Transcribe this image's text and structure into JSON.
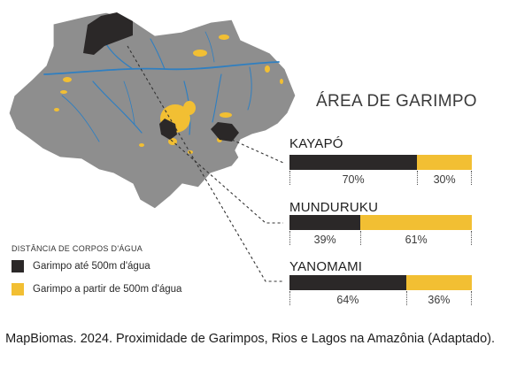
{
  "title": "ÁREA DE GARIMPO",
  "legend": {
    "title": "DISTÂNCIA DE CORPOS D'ÁGUA",
    "items": [
      {
        "label": "Garimpo até 500m d'água",
        "color": "#2b2828"
      },
      {
        "label": "Garimpo a partir de 500m d'água",
        "color": "#f2bf33"
      }
    ]
  },
  "chart_data": {
    "type": "bar",
    "stacked": true,
    "orientation": "horizontal",
    "categories": [
      "KAYAPÓ",
      "MUNDURUKU",
      "YANOMAMI"
    ],
    "series": [
      {
        "name": "Garimpo até 500m d'água",
        "values": [
          70,
          39,
          64
        ],
        "labels": [
          "70%",
          "39%",
          "64%"
        ],
        "color": "#2b2828"
      },
      {
        "name": "Garimpo a partir de 500m d'água",
        "values": [
          30,
          61,
          36
        ],
        "labels": [
          "30%",
          "61%",
          "36%"
        ],
        "color": "#f2bf33"
      }
    ]
  },
  "map": {
    "land_color": "#8e8e8e",
    "river_color": "#2f7fc1",
    "territory_color": "#2b2828",
    "mining_color": "#f2bf33"
  },
  "caption": "MapBiomas. 2024. Proximidade de Garimpos, Rios e Lagos na Amazônia (Adaptado)."
}
